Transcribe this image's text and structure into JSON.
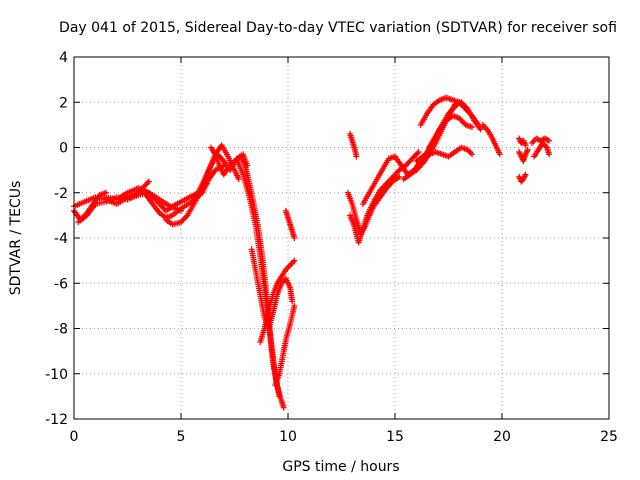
{
  "chart_data": {
    "type": "scatter",
    "title": "Day 041 of 2015, Sidereal Day-to-day VTEC variation (SDTVAR) for receiver sofi",
    "xlabel": "GPS time / hours",
    "ylabel": "SDTVAR / TECUs",
    "xlim": [
      0,
      25
    ],
    "ylim": [
      -12,
      4
    ],
    "x_ticks": [
      0,
      5,
      10,
      15,
      20,
      25
    ],
    "y_ticks": [
      -12,
      -10,
      -8,
      -6,
      -4,
      -2,
      0,
      2,
      4
    ],
    "grid": true,
    "legend": "none",
    "marker": "plus",
    "series_color": "#ff0000",
    "tracks": [
      {
        "name": "track-1",
        "x": [
          0.0,
          0.3,
          0.6,
          0.9,
          1.2,
          1.5
        ],
        "y": [
          -2.8,
          -3.2,
          -2.9,
          -2.5,
          -2.1,
          -2.0
        ]
      },
      {
        "name": "track-2",
        "x": [
          0.2,
          0.6,
          1.0,
          1.5,
          2.0,
          2.5,
          3.0,
          3.5,
          4.0,
          4.5,
          5.0
        ],
        "y": [
          -3.3,
          -3.0,
          -2.5,
          -2.4,
          -2.2,
          -2.3,
          -2.1,
          -2.0,
          -2.3,
          -2.6,
          -2.8
        ]
      },
      {
        "name": "track-3",
        "x": [
          0.0,
          0.5,
          1.0,
          1.5,
          2.0,
          2.5,
          3.0,
          3.5
        ],
        "y": [
          -2.6,
          -2.4,
          -2.2,
          -2.3,
          -2.5,
          -2.2,
          -2.0,
          -1.5
        ]
      },
      {
        "name": "track-4",
        "x": [
          1.5,
          2.0,
          2.5,
          3.0,
          3.3,
          3.6,
          4.0,
          4.3,
          4.6,
          5.0,
          5.4,
          5.8,
          6.2
        ],
        "y": [
          -2.2,
          -2.3,
          -2.0,
          -1.8,
          -1.9,
          -2.1,
          -2.5,
          -2.8,
          -2.6,
          -2.4,
          -2.2,
          -2.0,
          -1.6
        ]
      },
      {
        "name": "track-5",
        "x": [
          3.0,
          3.3,
          3.6,
          4.0,
          4.3,
          4.6,
          5.0,
          5.5,
          6.0,
          6.3,
          6.6,
          7.0
        ],
        "y": [
          -1.8,
          -2.0,
          -2.4,
          -2.9,
          -3.1,
          -3.0,
          -2.7,
          -2.4,
          -2.0,
          -1.4,
          -1.0,
          -0.8
        ]
      },
      {
        "name": "track-6",
        "x": [
          4.3,
          4.6,
          5.0,
          5.3,
          5.6,
          6.0,
          6.3,
          6.6,
          6.9,
          7.2,
          7.5,
          7.7
        ],
        "y": [
          -3.2,
          -3.4,
          -3.3,
          -3.0,
          -2.5,
          -1.8,
          -1.0,
          -0.3,
          0.1,
          -0.4,
          -1.0,
          -1.4
        ]
      },
      {
        "name": "track-7",
        "x": [
          5.5,
          5.8,
          6.1,
          6.4,
          6.7,
          7.0,
          7.3,
          7.6,
          7.9,
          8.1
        ],
        "y": [
          -2.5,
          -2.0,
          -1.4,
          -0.8,
          -0.3,
          -0.6,
          -1.0,
          -0.5,
          -0.3,
          -0.8
        ]
      },
      {
        "name": "track-8",
        "x": [
          6.4,
          6.6,
          6.8,
          7.0,
          7.2,
          7.5,
          7.8,
          8.0,
          8.2,
          8.4,
          8.6,
          8.8,
          9.0,
          9.2,
          9.4,
          9.6
        ],
        "y": [
          0.0,
          -0.3,
          -0.8,
          -1.2,
          -0.9,
          -0.6,
          -0.4,
          -0.8,
          -1.6,
          -2.5,
          -3.5,
          -4.8,
          -6.5,
          -8.5,
          -10.0,
          -11.0
        ]
      },
      {
        "name": "track-9",
        "x": [
          7.6,
          7.9,
          8.2,
          8.5,
          8.7,
          8.9,
          9.1,
          9.3,
          9.5,
          9.7,
          9.8
        ],
        "y": [
          -0.5,
          -1.2,
          -2.2,
          -3.5,
          -4.8,
          -6.2,
          -7.8,
          -9.5,
          -10.6,
          -11.2,
          -11.5
        ]
      },
      {
        "name": "track-10",
        "x": [
          8.3,
          8.5,
          8.7,
          8.9,
          9.1,
          9.3,
          9.5,
          9.7,
          9.9,
          10.1,
          10.2
        ],
        "y": [
          -4.5,
          -5.5,
          -6.5,
          -7.5,
          -8.0,
          -7.3,
          -6.5,
          -6.0,
          -5.8,
          -6.2,
          -6.8
        ]
      },
      {
        "name": "track-11",
        "x": [
          8.7,
          8.9,
          9.1,
          9.3,
          9.5,
          9.7,
          9.9,
          10.1,
          10.3
        ],
        "y": [
          -8.6,
          -8.0,
          -7.2,
          -6.5,
          -6.0,
          -5.7,
          -5.4,
          -5.2,
          -5.0
        ]
      },
      {
        "name": "track-12",
        "x": [
          9.4,
          9.6,
          9.8,
          9.9,
          10.1,
          10.3
        ],
        "y": [
          -10.5,
          -10.0,
          -9.0,
          -8.5,
          -7.8,
          -7.0
        ]
      },
      {
        "name": "track-13",
        "x": [
          9.9,
          10.0,
          10.1,
          10.2,
          10.3
        ],
        "y": [
          -2.8,
          -3.1,
          -3.4,
          -3.7,
          -4.0
        ]
      },
      {
        "name": "track-14",
        "x": [
          12.9,
          13.0,
          13.1,
          13.2
        ],
        "y": [
          0.6,
          0.3,
          0.0,
          -0.4
        ]
      },
      {
        "name": "track-15",
        "x": [
          12.8,
          13.0,
          13.2,
          13.4,
          13.6,
          13.8,
          14.0,
          14.3,
          14.6,
          14.9,
          15.2
        ],
        "y": [
          -2.0,
          -2.5,
          -3.2,
          -3.8,
          -3.5,
          -3.0,
          -2.6,
          -2.2,
          -1.8,
          -1.5,
          -1.3
        ]
      },
      {
        "name": "track-16",
        "x": [
          12.9,
          13.1,
          13.3,
          13.5,
          13.7,
          14.0,
          14.3,
          14.6,
          14.9,
          15.2,
          15.5,
          15.8,
          16.1
        ],
        "y": [
          -3.0,
          -3.5,
          -4.2,
          -3.6,
          -3.0,
          -2.4,
          -1.9,
          -1.6,
          -1.3,
          -1.0,
          -0.8,
          -0.5,
          -0.2
        ]
      },
      {
        "name": "track-17",
        "x": [
          13.5,
          13.8,
          14.1,
          14.4,
          14.7,
          15.0,
          15.3,
          15.6,
          15.9,
          16.2,
          16.5,
          16.8,
          17.1,
          17.4,
          17.7,
          18.0,
          18.3,
          18.6
        ],
        "y": [
          -2.5,
          -2.0,
          -1.5,
          -1.0,
          -0.5,
          -0.4,
          -0.8,
          -1.2,
          -1.0,
          -0.6,
          -0.2,
          0.3,
          0.8,
          1.2,
          1.4,
          1.3,
          1.0,
          0.9
        ]
      },
      {
        "name": "track-18",
        "x": [
          15.4,
          15.7,
          16.0,
          16.3,
          16.6,
          16.9,
          17.2,
          17.5,
          17.8,
          18.1,
          18.4,
          18.7,
          19.0
        ],
        "y": [
          -1.4,
          -1.2,
          -1.0,
          -0.7,
          -0.3,
          0.2,
          0.8,
          1.4,
          1.9,
          2.0,
          1.7,
          1.2,
          0.8
        ]
      },
      {
        "name": "track-19",
        "x": [
          16.2,
          16.5,
          16.8,
          17.1,
          17.4,
          17.7,
          18.0,
          18.3,
          18.6,
          18.9
        ],
        "y": [
          1.0,
          1.5,
          1.9,
          2.1,
          2.2,
          2.1,
          2.0,
          1.7,
          1.4,
          1.0
        ]
      },
      {
        "name": "track-20",
        "x": [
          16.0,
          16.3,
          16.6,
          16.9,
          17.2,
          17.5,
          17.8,
          18.1,
          18.4,
          18.6
        ],
        "y": [
          -0.6,
          -0.4,
          -0.3,
          -0.2,
          -0.3,
          -0.4,
          -0.2,
          0.0,
          -0.1,
          -0.3
        ]
      },
      {
        "name": "track-21",
        "x": [
          16.6,
          16.9,
          17.2,
          17.5,
          17.8,
          18.0
        ],
        "y": [
          0.0,
          0.5,
          1.0,
          1.5,
          1.8,
          2.0
        ]
      },
      {
        "name": "track-22",
        "x": [
          19.1,
          19.3,
          19.5,
          19.7,
          19.9
        ],
        "y": [
          1.0,
          0.8,
          0.5,
          0.1,
          -0.3
        ]
      },
      {
        "name": "track-23",
        "x": [
          20.8,
          20.9,
          21.0,
          21.1
        ],
        "y": [
          0.4,
          0.2,
          0.3,
          0.1
        ]
      },
      {
        "name": "track-24",
        "x": [
          20.8,
          20.9,
          21.0,
          21.1,
          21.2
        ],
        "y": [
          -0.2,
          -0.4,
          -0.6,
          -0.3,
          -0.1
        ]
      },
      {
        "name": "track-25",
        "x": [
          20.8,
          20.9,
          21.0,
          21.1
        ],
        "y": [
          -1.3,
          -1.5,
          -1.4,
          -1.2
        ]
      },
      {
        "name": "track-26",
        "x": [
          21.4,
          21.6,
          21.8,
          22.0,
          22.2
        ],
        "y": [
          0.2,
          0.4,
          0.3,
          0.4,
          0.3
        ]
      },
      {
        "name": "track-27",
        "x": [
          21.5,
          21.7,
          21.9,
          22.1,
          22.2
        ],
        "y": [
          -0.4,
          -0.1,
          0.2,
          0.0,
          -0.3
        ]
      }
    ]
  }
}
